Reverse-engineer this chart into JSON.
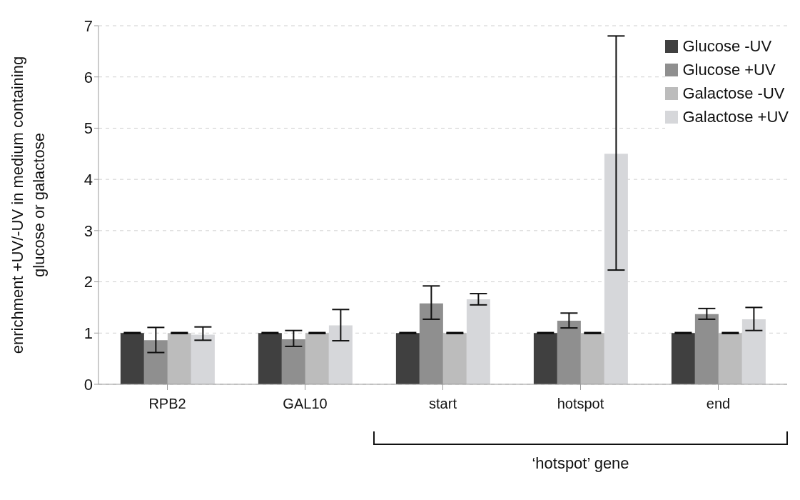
{
  "chart_data": {
    "type": "bar",
    "ylabel": "enrichment +UV/-UV in medium containing glucose or galactose",
    "categories": [
      "RPB2",
      "GAL10",
      "start",
      "hotspot",
      "end"
    ],
    "series": [
      {
        "name": "Glucose -UV",
        "color": "#404040",
        "values": [
          1,
          1,
          1,
          1,
          1
        ],
        "errors": [
          0.01,
          0.01,
          0.01,
          0.01,
          0.01
        ]
      },
      {
        "name": "Glucose +UV",
        "color": "#8f8f8f",
        "values": [
          0.86,
          0.88,
          1.58,
          1.24,
          1.37
        ],
        "errors": [
          [
            0.62,
            1.11
          ],
          [
            0.74,
            1.05
          ],
          [
            1.27,
            1.92
          ],
          [
            1.1,
            1.39
          ],
          [
            1.27,
            1.48
          ]
        ]
      },
      {
        "name": "Galactose -UV",
        "color": "#bcbcbc",
        "values": [
          1,
          1,
          1,
          1,
          1
        ],
        "errors": [
          0.01,
          0.01,
          0.01,
          0.01,
          0.01
        ]
      },
      {
        "name": "Galactose +UV",
        "color": "#d6d7da",
        "values": [
          0.97,
          1.15,
          1.66,
          4.5,
          1.27
        ],
        "errors": [
          [
            0.86,
            1.12
          ],
          [
            0.85,
            1.46
          ],
          [
            1.55,
            1.77
          ],
          [
            2.23,
            6.8
          ],
          [
            1.05,
            1.5
          ]
        ]
      }
    ],
    "ylim": [
      0,
      7
    ],
    "yticks": [
      0,
      1,
      2,
      3,
      4,
      5,
      6,
      7
    ],
    "grid": "y",
    "legend": "top right",
    "annotations": [
      "‘hotspot’ gene"
    ]
  }
}
